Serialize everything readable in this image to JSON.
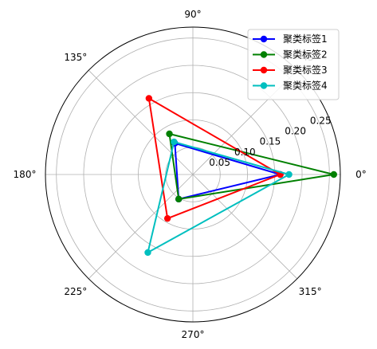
{
  "chart_data": {
    "type": "radar",
    "theta_labels": [
      "0°",
      "45°",
      "90°",
      "135°",
      "180°",
      "225°",
      "270°",
      "315°"
    ],
    "radial_ticks": [
      "0.05",
      "0.10",
      "0.15",
      "0.20",
      "0.25"
    ],
    "radial_tick_values": [
      0.05,
      0.1,
      0.15,
      0.2,
      0.25
    ],
    "rlim": [
      0,
      0.27
    ],
    "angles_deg": [
      0,
      120,
      240
    ],
    "grid": true,
    "legend_position": "top-right",
    "series": [
      {
        "name": "聚类标签1",
        "color": "#0000ff",
        "values": [
          0.16,
          0.066,
          0.052
        ]
      },
      {
        "name": "聚类标签2",
        "color": "#008000",
        "values": [
          0.258,
          0.086,
          0.052
        ]
      },
      {
        "name": "聚类标签3",
        "color": "#ff0000",
        "values": [
          0.16,
          0.161,
          0.093
        ]
      },
      {
        "name": "聚类标签4",
        "color": "#00bfbf",
        "values": [
          0.176,
          0.069,
          0.165
        ]
      }
    ]
  }
}
